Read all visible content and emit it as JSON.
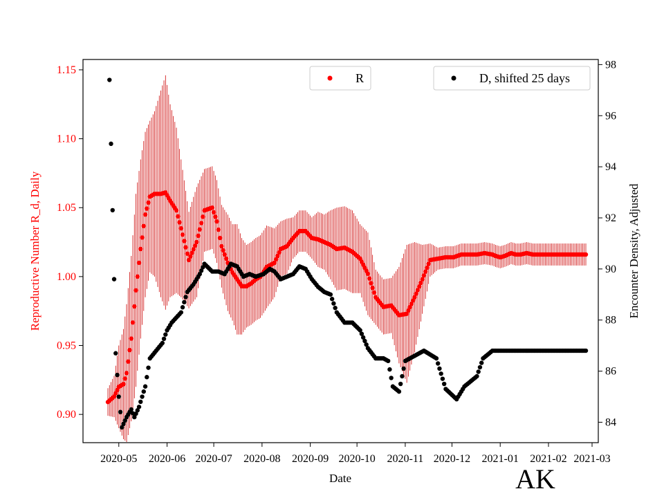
{
  "chart_data": {
    "type": "scatter",
    "title": "",
    "xlabel": "Date",
    "ylabel_left": "Reproductive Number R_d, Daily",
    "ylabel_right": "Encounter Density, Adjusted",
    "state_label": "AK",
    "x_tick_labels": [
      "2020-05",
      "2020-06",
      "2020-07",
      "2020-08",
      "2020-09",
      "2020-10",
      "2020-11",
      "2020-12",
      "2021-01",
      "2021-02",
      "2021-03"
    ],
    "xlim_days": [
      -23,
      308
    ],
    "ylim_left": [
      0.8795,
      1.1575
    ],
    "yticks_left": [
      0.9,
      0.95,
      1.0,
      1.05,
      1.1,
      1.15
    ],
    "ylim_right": [
      83.2,
      98.2
    ],
    "yticks_right": [
      84,
      86,
      88,
      90,
      92,
      94,
      96,
      98
    ],
    "colors": {
      "r_series": "#ff0000",
      "errorbar": "#cc0000",
      "d_series": "#000000",
      "left_axis_text": "#ff0000",
      "right_axis_text": "#000000"
    },
    "legend": [
      {
        "label": "R",
        "color": "#ff0000"
      },
      {
        "label": "D, shifted 25 days",
        "color": "#000000"
      }
    ],
    "series": [
      {
        "name": "R",
        "axis": "left",
        "note": "x = days since 2020-05-01; value with error half-width",
        "knots_x": [
          -7,
          -3,
          0,
          3,
          5,
          8,
          11,
          14,
          17,
          20,
          23,
          27,
          30,
          33,
          37,
          40,
          45,
          50,
          55,
          60,
          63,
          66,
          70,
          73,
          76,
          79,
          82,
          85,
          88,
          91,
          95,
          100,
          104,
          108,
          112,
          116,
          120,
          124,
          128,
          132,
          136,
          140,
          145,
          150,
          155,
          160,
          165,
          170,
          175,
          180,
          185,
          190,
          195,
          200,
          205,
          210,
          215,
          220,
          225,
          230,
          235,
          240,
          242,
          245,
          248,
          252,
          255,
          258,
          262,
          266,
          270,
          273,
          276,
          280,
          283,
          286,
          289,
          292,
          295,
          298,
          301,
          304
        ],
        "knots_v": [
          0.909,
          0.913,
          0.92,
          0.922,
          0.93,
          0.955,
          0.99,
          1.02,
          1.045,
          1.058,
          1.06,
          1.06,
          1.061,
          1.055,
          1.048,
          1.035,
          1.012,
          1.025,
          1.048,
          1.05,
          1.04,
          1.022,
          1.01,
          1.003,
          0.998,
          0.993,
          0.993,
          0.995,
          0.998,
          1.0,
          1.007,
          1.01,
          1.02,
          1.022,
          1.028,
          1.033,
          1.033,
          1.028,
          1.027,
          1.025,
          1.023,
          1.02,
          1.021,
          1.018,
          1.013,
          1.002,
          0.985,
          0.978,
          0.979,
          0.972,
          0.973,
          0.985,
          0.998,
          1.012,
          1.013,
          1.014,
          1.014,
          1.016,
          1.016,
          1.016,
          1.017,
          1.016,
          1.015,
          1.014,
          1.015,
          1.017,
          1.016,
          1.016,
          1.017,
          1.016,
          1.016,
          1.016,
          1.016,
          1.016,
          1.016,
          1.016,
          1.016,
          1.016,
          1.016,
          1.016,
          1.016,
          1.016
        ],
        "knots_err": [
          0.01,
          0.015,
          0.03,
          0.04,
          0.05,
          0.06,
          0.07,
          0.065,
          0.06,
          0.055,
          0.06,
          0.075,
          0.085,
          0.07,
          0.06,
          0.05,
          0.035,
          0.04,
          0.03,
          0.03,
          0.03,
          0.03,
          0.035,
          0.035,
          0.04,
          0.035,
          0.03,
          0.03,
          0.03,
          0.03,
          0.03,
          0.025,
          0.02,
          0.02,
          0.015,
          0.015,
          0.015,
          0.015,
          0.02,
          0.02,
          0.025,
          0.03,
          0.03,
          0.03,
          0.025,
          0.03,
          0.02,
          0.02,
          0.02,
          0.035,
          0.05,
          0.04,
          0.025,
          0.012,
          0.008,
          0.008,
          0.008,
          0.008,
          0.008,
          0.008,
          0.008,
          0.008,
          0.008,
          0.008,
          0.008,
          0.008,
          0.008,
          0.008,
          0.008,
          0.008,
          0.008,
          0.008,
          0.008,
          0.008,
          0.008,
          0.008,
          0.008,
          0.008,
          0.008,
          0.008,
          0.008,
          0.008
        ],
        "x_range": [
          -7,
          300
        ]
      },
      {
        "name": "D, shifted 25 days",
        "axis": "right",
        "note": "x = days since 2020-05-01",
        "knots_x": [
          -6,
          -5,
          -4,
          -3,
          -2,
          0,
          2,
          5,
          8,
          10,
          13,
          17,
          20,
          24,
          28,
          31,
          34,
          37,
          40,
          44,
          48,
          52,
          55,
          60,
          64,
          68,
          72,
          76,
          80,
          84,
          88,
          93,
          97,
          100,
          104,
          108,
          112,
          116,
          120,
          124,
          128,
          132,
          136,
          140,
          145,
          150,
          155,
          160,
          165,
          170,
          173,
          176,
          180,
          184,
          190,
          196,
          204,
          210,
          217,
          222,
          226,
          230,
          234,
          236,
          240,
          243,
          248,
          252,
          256,
          260,
          262,
          266,
          272,
          280,
          288,
          300
        ],
        "knots_v": [
          97.4,
          94.9,
          92.3,
          89.6,
          86.7,
          85.0,
          83.8,
          84.2,
          84.5,
          84.2,
          84.6,
          85.4,
          86.5,
          86.8,
          87.1,
          87.6,
          87.9,
          88.1,
          88.3,
          89.1,
          89.4,
          89.8,
          90.2,
          89.9,
          89.9,
          89.8,
          90.2,
          90.1,
          89.7,
          89.8,
          89.7,
          89.8,
          90.0,
          89.9,
          89.6,
          89.7,
          89.8,
          90.1,
          90.0,
          89.6,
          89.3,
          89.1,
          89.0,
          88.3,
          87.9,
          87.9,
          87.6,
          86.9,
          86.5,
          86.5,
          86.4,
          85.4,
          85.2,
          86.4,
          86.6,
          86.8,
          86.5,
          85.3,
          84.9,
          85.4,
          85.6,
          85.8,
          86.5,
          86.6,
          86.8,
          86.8,
          86.8,
          86.8,
          86.8,
          86.8,
          86.8,
          86.8,
          86.8,
          86.8,
          86.8,
          86.8
        ],
        "x_range": [
          -6,
          300
        ]
      }
    ]
  }
}
